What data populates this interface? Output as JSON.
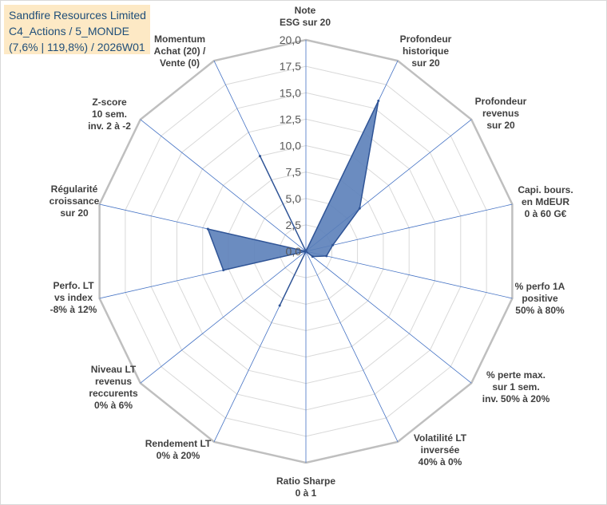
{
  "title_box": {
    "line1": "Sandfire Resources Limited",
    "line2": "C4_Actions / 5_MONDE",
    "line3": "(7,6% | 119,8%) / 2026W01"
  },
  "chart_data": {
    "type": "radar",
    "title": "Sandfire Resources Limited",
    "rlim": [
      0,
      20
    ],
    "ticks": [
      "0,0",
      "2,5",
      "5,0",
      "7,5",
      "10,0",
      "12,5",
      "15,0",
      "17,5",
      "20,0"
    ],
    "axes": [
      [
        "Note",
        "ESG sur 20"
      ],
      [
        "Profondeur",
        "historique",
        "sur 20"
      ],
      [
        "Profondeur",
        "revenus",
        "sur 20"
      ],
      [
        "Capi. bours.",
        "en MdEUR",
        "0 à 60 G€"
      ],
      [
        "% perfo 1A",
        "positive",
        "50% à 80%"
      ],
      [
        "% perte max.",
        "sur 1 sem.",
        "inv. 50% à 20%"
      ],
      [
        "Volatilité LT",
        "inversée",
        "40% à 0%"
      ],
      [
        "Ratio Sharpe",
        "0 à 1"
      ],
      [
        "Rendement LT",
        "0% à 20%"
      ],
      [
        "Niveau LT",
        "revenus",
        "reccurents",
        "0% à 6%"
      ],
      [
        "Perfo. LT",
        "vs index",
        "-8% à 12%"
      ],
      [
        "Régularité",
        "croissance",
        "sur 20"
      ],
      [
        "Z-score",
        "10 sem.",
        "inv. 2 à -2"
      ],
      [
        "Momentum",
        "Achat (20) /",
        "Vente (0)"
      ]
    ],
    "series": [
      {
        "name": "Sandfire Resources Limited",
        "values": [
          0,
          15.8,
          6.5,
          2.6,
          2.0,
          0.8,
          0,
          0,
          5.7,
          0,
          8.0,
          9.5,
          0,
          10.0
        ]
      }
    ],
    "colors": {
      "fill": "#5b7fb9",
      "stroke": "#2f5496",
      "grid": "#d9d9d9",
      "spoke": "#4472c4"
    }
  }
}
